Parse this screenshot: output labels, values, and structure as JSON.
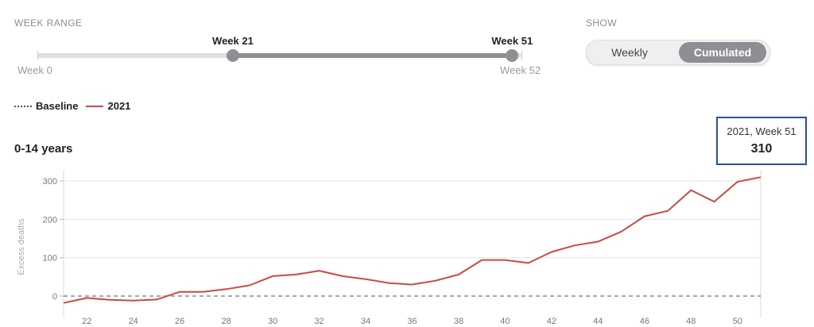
{
  "controls": {
    "week_range_label": "WEEK RANGE",
    "show_label": "SHOW",
    "slider": {
      "min_label": "Week 0",
      "max_label": "Week 52",
      "min": 0,
      "max": 52,
      "start": 21,
      "end": 51,
      "start_label": "Week 21",
      "end_label": "Week 51"
    },
    "toggle": {
      "weekly_label": "Weekly",
      "cumulated_label": "Cumulated",
      "selected": "Cumulated"
    }
  },
  "legend": {
    "baseline_label": "Baseline",
    "series_label": "2021"
  },
  "colors": {
    "series": "#c94a42",
    "baseline": "#8a8a9a",
    "accent": "#8e8f94",
    "tooltip_border": "#2a4f9a"
  },
  "tooltip": {
    "header": "2021, Week 51",
    "value": "310"
  },
  "chart_data": {
    "type": "line",
    "title": "0-14 years",
    "ylabel": "Excess deaths",
    "xlabel": "",
    "xlim": [
      21,
      51
    ],
    "ylim": [
      -20,
      320
    ],
    "yticks": [
      0,
      100,
      200,
      300
    ],
    "xticks": [
      22,
      24,
      26,
      28,
      30,
      32,
      34,
      36,
      38,
      40,
      42,
      44,
      46,
      48,
      50
    ],
    "grid": true,
    "series": [
      {
        "name": "2021",
        "x": [
          21,
          22,
          23,
          24,
          25,
          26,
          27,
          28,
          29,
          30,
          31,
          32,
          33,
          34,
          35,
          36,
          37,
          38,
          39,
          40,
          41,
          42,
          43,
          44,
          45,
          46,
          47,
          48,
          49,
          50,
          51
        ],
        "values": [
          -18,
          -5,
          -10,
          -12,
          -9,
          11,
          11,
          18,
          28,
          52,
          56,
          66,
          52,
          44,
          34,
          30,
          40,
          56,
          94,
          94,
          86,
          115,
          132,
          142,
          168,
          208,
          222,
          276,
          246,
          298,
          310
        ]
      },
      {
        "name": "Baseline",
        "x": [
          21,
          51
        ],
        "values": [
          0,
          0
        ]
      }
    ]
  }
}
